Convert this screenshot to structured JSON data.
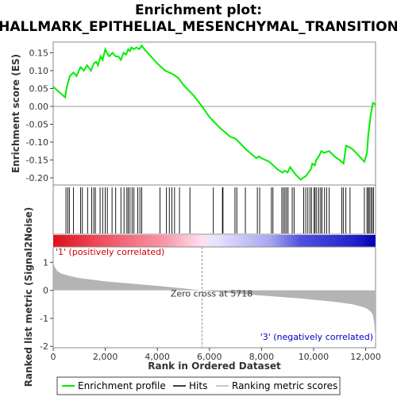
{
  "chart_data": {
    "type": "line",
    "title_line1": "Enrichment plot:",
    "title_line2": "HALLMARK_EPITHELIAL_MESENCHYMAL_TRANSITION",
    "top_panel": {
      "ylabel": "Enrichment score (ES)",
      "ylim": [
        -0.22,
        0.18
      ],
      "yticks": [
        0.15,
        0.1,
        0.05,
        0.0,
        -0.05,
        -0.1,
        -0.15,
        -0.2
      ],
      "ytick_labels": [
        "0.15",
        "0.10",
        "0.05",
        "0.00",
        "-0.05",
        "-0.10",
        "-0.15",
        "-0.20"
      ],
      "line_color": "#00ee00",
      "series": [
        {
          "name": "Enrichment profile",
          "x": [
            0,
            460,
            500,
            560,
            640,
            780,
            900,
            1050,
            1180,
            1300,
            1450,
            1560,
            1650,
            1720,
            1820,
            1900,
            2000,
            2060,
            2150,
            2280,
            2400,
            2500,
            2600,
            2700,
            2800,
            2880,
            2950,
            3000,
            3100,
            3200,
            3300,
            3400,
            3500,
            4000,
            4300,
            4600,
            4800,
            5000,
            5400,
            5718,
            6000,
            6400,
            6800,
            7000,
            7400,
            7800,
            7900,
            8000,
            8300,
            8600,
            8800,
            8900,
            9000,
            9100,
            9300,
            9500,
            9600,
            9700,
            9800,
            9900,
            9950,
            10050,
            10100,
            10200,
            10300,
            10400,
            10600,
            10800,
            11000,
            11150,
            11250,
            11400,
            11500,
            11700,
            11950,
            12050,
            12100,
            12150,
            12200,
            12280,
            12380
          ],
          "y": [
            0.055,
            0.025,
            0.045,
            0.065,
            0.085,
            0.095,
            0.085,
            0.11,
            0.1,
            0.115,
            0.1,
            0.12,
            0.125,
            0.115,
            0.14,
            0.13,
            0.16,
            0.15,
            0.14,
            0.15,
            0.14,
            0.14,
            0.13,
            0.15,
            0.145,
            0.16,
            0.155,
            0.165,
            0.16,
            0.165,
            0.16,
            0.17,
            0.16,
            0.12,
            0.1,
            0.09,
            0.08,
            0.06,
            0.03,
            0.0,
            -0.03,
            -0.06,
            -0.085,
            -0.09,
            -0.12,
            -0.145,
            -0.14,
            -0.145,
            -0.155,
            -0.175,
            -0.185,
            -0.18,
            -0.185,
            -0.17,
            -0.19,
            -0.205,
            -0.2,
            -0.195,
            -0.185,
            -0.175,
            -0.16,
            -0.165,
            -0.15,
            -0.14,
            -0.125,
            -0.13,
            -0.125,
            -0.14,
            -0.15,
            -0.16,
            -0.11,
            -0.115,
            -0.12,
            -0.135,
            -0.155,
            -0.13,
            -0.08,
            -0.05,
            -0.02,
            0.01,
            0.005
          ]
        }
      ]
    },
    "hits_panel": {
      "label": "Hits",
      "positions": [
        490,
        560,
        620,
        780,
        1050,
        1120,
        1320,
        1480,
        1560,
        1620,
        1800,
        1900,
        2000,
        2080,
        2260,
        2400,
        2600,
        2720,
        2830,
        2880,
        2950,
        3030,
        3100,
        3250,
        3330,
        3400,
        4100,
        4350,
        4460,
        4560,
        4660,
        4850,
        5250,
        6150,
        6500,
        6520,
        6980,
        7050,
        7380,
        7840,
        7930,
        8380,
        8440,
        8780,
        8840,
        8900,
        8960,
        9020,
        9180,
        9250,
        9620,
        9700,
        9780,
        9860,
        9920,
        10020,
        10060,
        10120,
        10200,
        10270,
        10320,
        10420,
        10500,
        10600,
        11080,
        11140,
        11240,
        11400,
        11950,
        12050,
        12100,
        12140,
        12200,
        12250,
        12300
      ]
    },
    "color_band": {
      "label_pos": "'1' (positively correlated)",
      "label_neg": "'3' (negatively correlated)",
      "stops": [
        {
          "x": 0,
          "color": "#e0101e"
        },
        {
          "x": 1900,
          "color": "#f05060"
        },
        {
          "x": 4300,
          "color": "#f898a8"
        },
        {
          "x": 5718,
          "color": "#ffe0f0"
        },
        {
          "x": 6200,
          "color": "#e8e4ff"
        },
        {
          "x": 8300,
          "color": "#a8a8f0"
        },
        {
          "x": 9500,
          "color": "#5050e0"
        },
        {
          "x": 11650,
          "color": "#2020c8"
        },
        {
          "x": 12380,
          "color": "#0000b4"
        }
      ]
    },
    "metric_panel": {
      "ylabel": "Ranked list metric (Signal2Noise)",
      "ylim": [
        -2.05,
        1.55
      ],
      "yticks": [
        1,
        0,
        -1,
        -2
      ],
      "ytick_labels": [
        "1",
        "0",
        "-1",
        "-2"
      ],
      "zero_cross_label": "Zero cross at 5718",
      "zero_cross": 5718,
      "fill_color": "#b4b4b4",
      "x": [
        0,
        50,
        150,
        300,
        600,
        1000,
        1500,
        2000,
        3000,
        4000,
        5000,
        5718,
        6500,
        7500,
        8500,
        9500,
        10500,
        11000,
        11500,
        11800,
        12000,
        12100,
        12200,
        12260,
        12300,
        12330,
        12360,
        12380
      ],
      "values": [
        1.0,
        0.85,
        0.7,
        0.6,
        0.52,
        0.44,
        0.38,
        0.32,
        0.24,
        0.16,
        0.07,
        0.0,
        -0.07,
        -0.15,
        -0.22,
        -0.29,
        -0.38,
        -0.43,
        -0.5,
        -0.57,
        -0.63,
        -0.68,
        -0.76,
        -0.85,
        -0.98,
        -1.2,
        -1.5,
        -1.92
      ]
    },
    "xaxis": {
      "label": "Rank in Ordered Dataset",
      "xlim": [
        0,
        12380
      ],
      "ticks": [
        0,
        2000,
        4000,
        6000,
        8000,
        10000,
        12000
      ],
      "tick_labels": [
        "0",
        "2,000",
        "4,000",
        "6,000",
        "8,000",
        "10,000",
        "12,000"
      ]
    },
    "legend": {
      "items": [
        {
          "label": "Enrichment profile",
          "color": "#00ee00"
        },
        {
          "label": "Hits",
          "color": "#000000"
        },
        {
          "label": "Ranking metric scores",
          "color": "#b4b4b4"
        }
      ]
    }
  }
}
